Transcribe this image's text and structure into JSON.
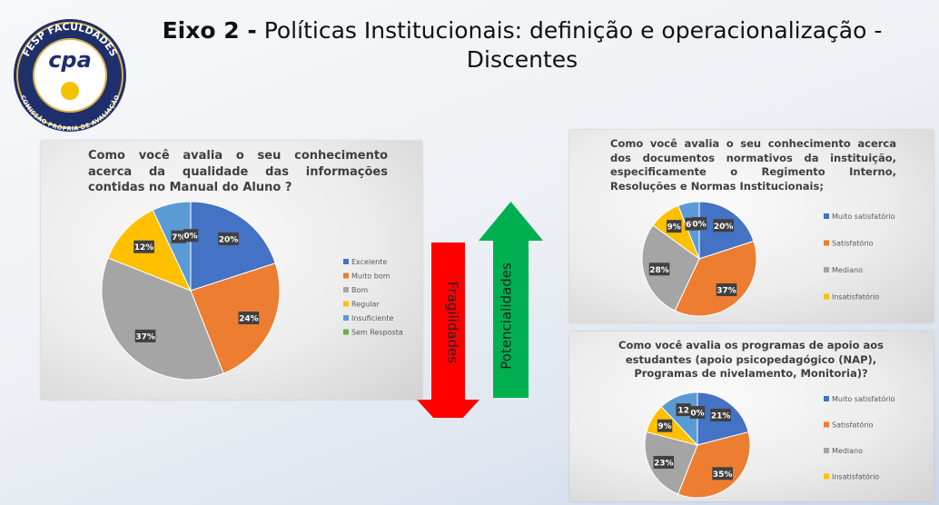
{
  "header": {
    "title_bold": "Eixo 2 -",
    "title": "Políticas Institucionais: definição e operacionalização - Discentes"
  },
  "logo": {
    "top": "FESP FACULDADES",
    "center": "cpa",
    "bottom": "COMISSÃO PRÓPRIA DE AVALIAÇÃO"
  },
  "arrows": {
    "down": "Fragilidades",
    "up": "Potencialidades"
  },
  "chart_data": [
    {
      "type": "pie",
      "title": "Como você avalia o seu conhecimento acerca da qualidade das informações contidas no Manual do Aluno ?",
      "categories": [
        "Excelente",
        "Muito bom",
        "Bom",
        "Regular",
        "Insuficiente",
        "Sem Resposta"
      ],
      "values": [
        20,
        24,
        37,
        12,
        7,
        0
      ],
      "value_labels": [
        "20%",
        "24%",
        "37%",
        "12%",
        "7%",
        "0%"
      ],
      "colors": [
        "#4472c4",
        "#ed7d31",
        "#a5a5a5",
        "#ffc000",
        "#5b9bd5",
        "#70ad47"
      ],
      "legend": "right"
    },
    {
      "type": "pie",
      "title": "Como você avalia o seu conhecimento acerca dos documentos normativos da instituição, especificamente o Regimento Interno, Resoluções e Normas Institucionais;",
      "categories": [
        "Muito satisfatório",
        "Satisfatório",
        "Mediano",
        "Insatisfatório",
        null,
        null
      ],
      "values": [
        20,
        37,
        28,
        9,
        6,
        0
      ],
      "value_labels": [
        "20%",
        "37%",
        "28%",
        "9%",
        "6%",
        "0%"
      ],
      "colors": [
        "#4472c4",
        "#ed7d31",
        "#a5a5a5",
        "#ffc000",
        "#5b9bd5",
        "#70ad47"
      ],
      "legend": "right"
    },
    {
      "type": "pie",
      "title": "Como você avalia os programas de apoio aos estudantes (apoio psicopedagógico (NAP), Programas de nivelamento, Monitoria)?",
      "categories": [
        "Muito satisfatório",
        "Satisfatório",
        "Mediano",
        "Insatisfatório",
        null,
        null
      ],
      "values": [
        21,
        35,
        23,
        9,
        12,
        0
      ],
      "value_labels": [
        "21%",
        "35%",
        "23%",
        "9%",
        "12",
        "0%"
      ],
      "colors": [
        "#4472c4",
        "#ed7d31",
        "#a5a5a5",
        "#ffc000",
        "#5b9bd5",
        "#70ad47"
      ],
      "legend": "right"
    }
  ]
}
